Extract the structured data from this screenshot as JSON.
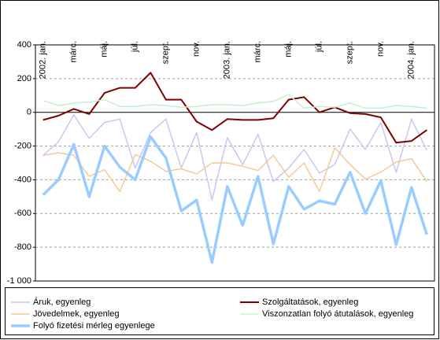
{
  "chart_data": {
    "type": "line",
    "categories": [
      "2002. jan.",
      null,
      "márc.",
      null,
      "máj.",
      null,
      "júl.",
      null,
      "szept.",
      null,
      "nov.",
      null,
      "2003. jan.",
      null,
      "márc.",
      null,
      "máj.",
      null,
      "júl.",
      null,
      "szept.",
      null,
      "nov.",
      null,
      "2004. jan.",
      null
    ],
    "series": [
      {
        "name": "Áruk, egyenleg",
        "color": "#c8c8f0",
        "width": 1.5,
        "values": [
          -255,
          -175,
          -15,
          -155,
          -60,
          -40,
          -330,
          -120,
          -40,
          -330,
          -120,
          -520,
          -150,
          -310,
          -130,
          -410,
          -330,
          -220,
          -360,
          -310,
          -100,
          -220,
          -60,
          -355,
          -40,
          -225
        ]
      },
      {
        "name": "Szolgáltatások, egyenleg",
        "color": "#800000",
        "width": 2,
        "values": [
          -45,
          -20,
          20,
          -10,
          115,
          145,
          145,
          235,
          75,
          75,
          -55,
          -105,
          -40,
          -45,
          -45,
          -35,
          75,
          90,
          0,
          30,
          -5,
          -10,
          -30,
          -180,
          -170,
          -105
        ]
      },
      {
        "name": "Jövedelmek, egyenleg",
        "color": "#f8c898",
        "width": 1.5,
        "values": [
          -255,
          -240,
          -255,
          -380,
          -340,
          -470,
          -250,
          -290,
          -350,
          -335,
          -365,
          -300,
          -300,
          -320,
          -345,
          -255,
          -385,
          -300,
          -470,
          -210,
          -310,
          -395,
          -355,
          -295,
          -275,
          -410
        ]
      },
      {
        "name": "Viszonzatlan folyó átutalások, egyenleg",
        "color": "#c8f0c8",
        "width": 1.5,
        "values": [
          70,
          40,
          55,
          60,
          75,
          35,
          35,
          45,
          40,
          30,
          35,
          45,
          45,
          40,
          55,
          65,
          105,
          25,
          35,
          30,
          55,
          25,
          25,
          40,
          35,
          25
        ]
      },
      {
        "name": "Folyó fizetési mérleg egyenlege",
        "color": "#99ccff",
        "width": 3.5,
        "values": [
          -490,
          -400,
          -190,
          -500,
          -200,
          -325,
          -400,
          -145,
          -270,
          -585,
          -520,
          -890,
          -440,
          -670,
          -380,
          -780,
          -440,
          -575,
          -525,
          -545,
          -355,
          -600,
          -405,
          -785,
          -445,
          -725
        ]
      }
    ],
    "ylim": [
      -1000,
      400
    ],
    "yticks": [
      400,
      200,
      0,
      -200,
      -400,
      -600,
      -800,
      {
        "value": -1000,
        "label": "-1 000"
      }
    ],
    "grid": true
  }
}
